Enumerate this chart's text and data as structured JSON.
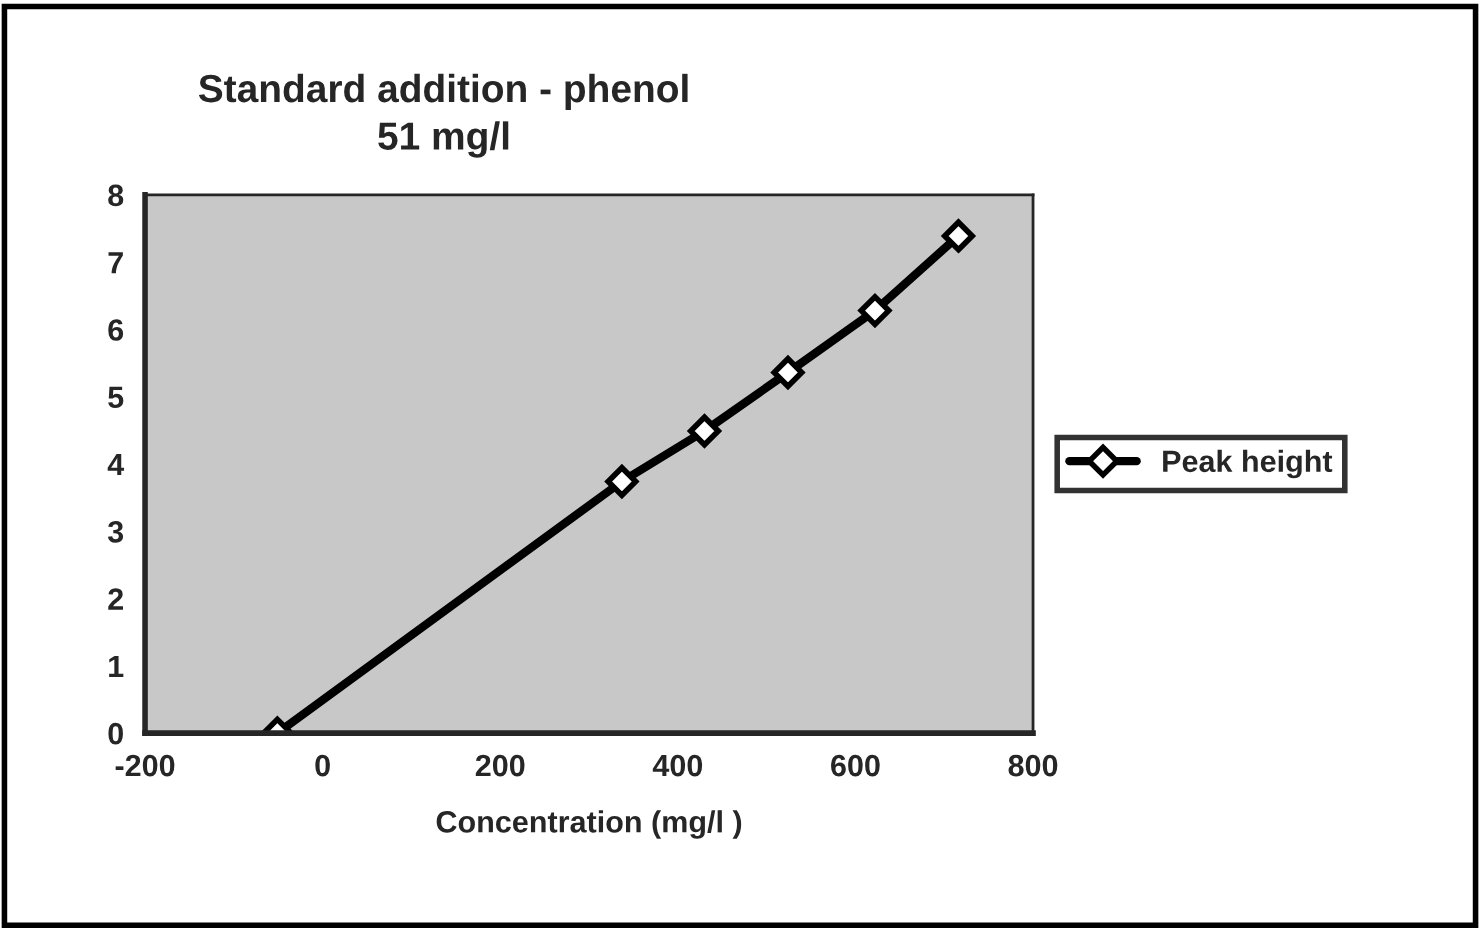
{
  "chart_data": {
    "type": "line",
    "title": "Standard addition - phenol\n51 mg/l",
    "xlabel": "Concentration (mg/l )",
    "x": [
      -51,
      337,
      430,
      524,
      622,
      716
    ],
    "series": [
      {
        "name": "Peak height",
        "color": "#000000",
        "values": [
          0,
          3.74,
          4.49,
          5.36,
          6.28,
          7.39
        ]
      }
    ],
    "xlim": [
      -200,
      800
    ],
    "xticks": [
      -200,
      0,
      200,
      400,
      600,
      800
    ],
    "ylim": [
      0,
      8
    ],
    "yticks": [
      0,
      1,
      2,
      3,
      4,
      5,
      6,
      7,
      8
    ],
    "legend": "right",
    "marker": "diamond",
    "line_style": "solid"
  }
}
